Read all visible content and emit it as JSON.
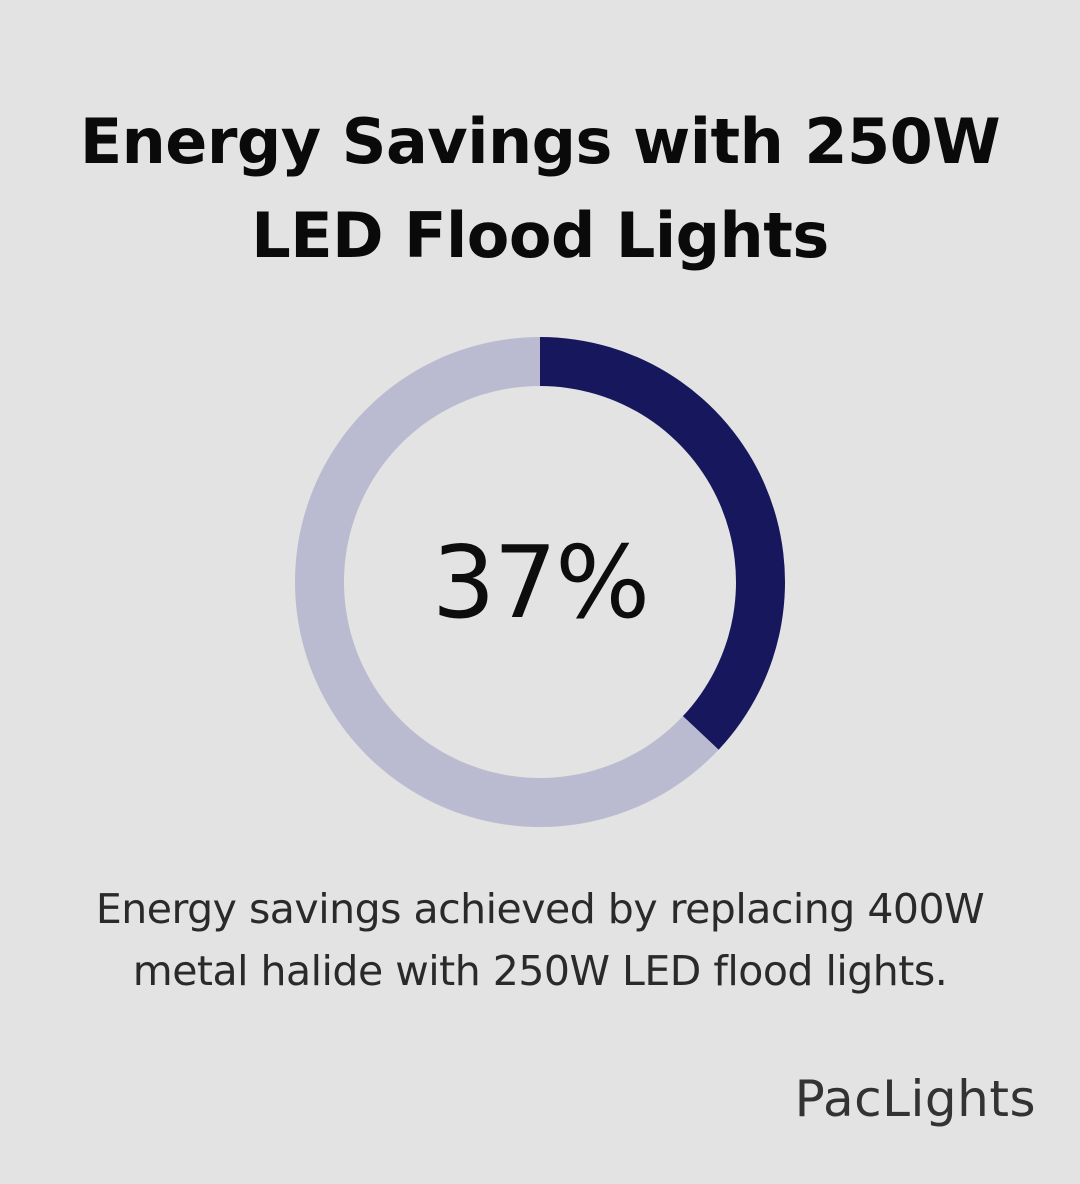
{
  "title": {
    "line1": "Energy Savings with 250W",
    "line2": "LED Flood Lights"
  },
  "chart_data": {
    "type": "pie",
    "variant": "donut",
    "value_label": "37%",
    "slices": [
      {
        "value": 37,
        "color": "#17175e"
      },
      {
        "value": 63,
        "color": "#babbd0"
      }
    ]
  },
  "caption": {
    "line1": "Energy savings achieved by replacing 400W",
    "line2": "metal halide with 250W LED flood lights."
  },
  "brand": {
    "name": "PacLights"
  },
  "colors": {
    "background": "#e2e3e2",
    "accent": "#17175e",
    "track": "#babbd0"
  }
}
